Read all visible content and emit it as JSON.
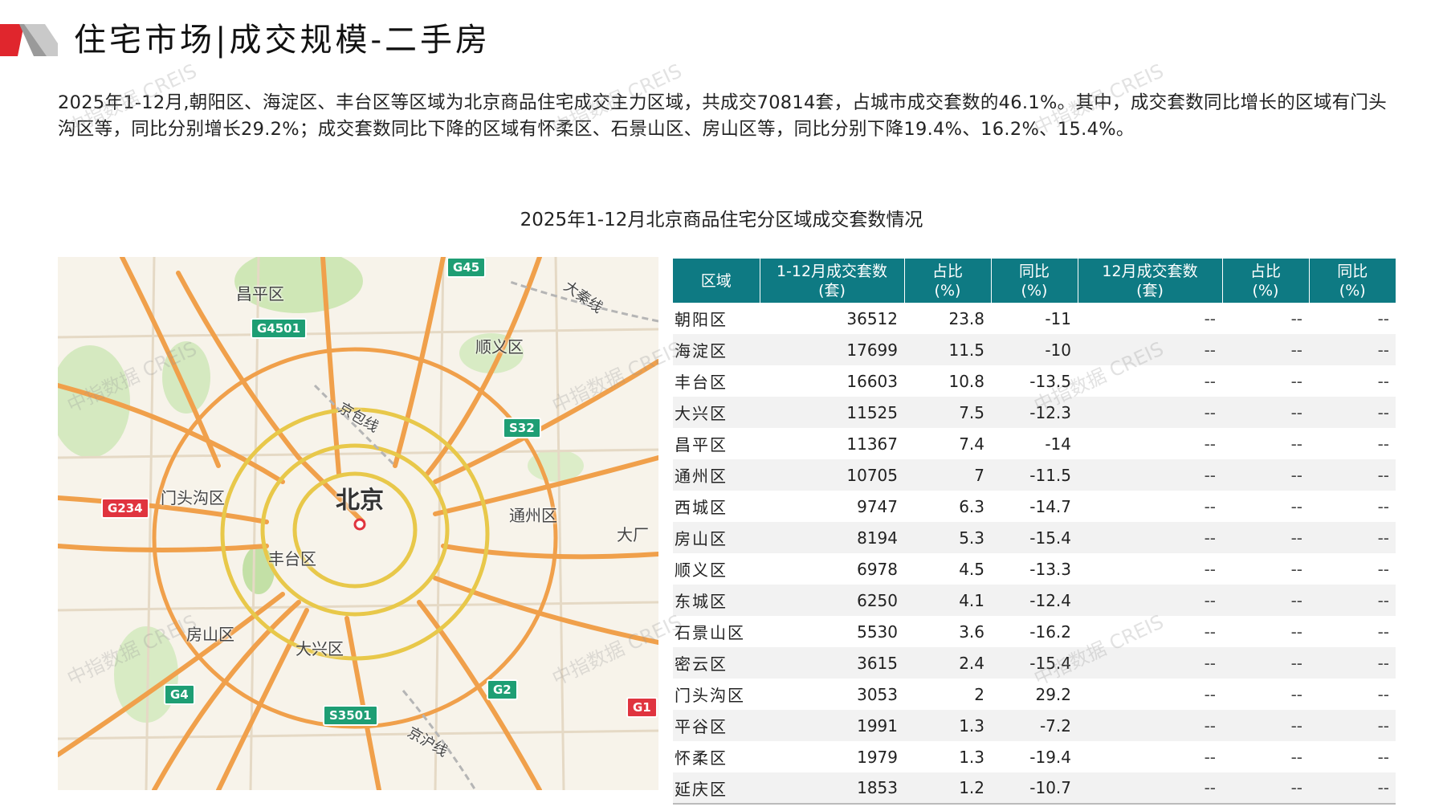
{
  "header": {
    "title": "住宅市场|成交规模-二手房"
  },
  "summary": "2025年1-12月,朝阳区、海淀区、丰台区等区域为北京商品住宅成交主力区域，共成交70814套，占城市成交套数的46.1%。其中，成交套数同比增长的区域有门头沟区等，同比分别增长29.2%；成交套数同比下降的区域有怀柔区、石景山区、房山区等，同比分别下降19.4%、16.2%、15.4%。",
  "chart_title": "2025年1-12月北京商品住宅分区域成交套数情况",
  "map": {
    "city_label": "北京",
    "district_labels": [
      "昌平区",
      "顺义区",
      "门头沟区",
      "通州区",
      "丰台区",
      "房山区",
      "大兴区",
      "大厂"
    ],
    "rail_labels": [
      "京包线",
      "大秦线",
      "京沪线"
    ],
    "highway_shields": [
      {
        "label": "G45",
        "color": "green"
      },
      {
        "label": "G4501",
        "color": "green"
      },
      {
        "label": "S32",
        "color": "green"
      },
      {
        "label": "G234",
        "color": "red"
      },
      {
        "label": "G4",
        "color": "green"
      },
      {
        "label": "G2",
        "color": "green"
      },
      {
        "label": "S3501",
        "color": "green"
      },
      {
        "label": "G1",
        "color": "red"
      }
    ],
    "colors": {
      "land": "#f7f3ea",
      "highway": "#f0a04b",
      "ring": "#e8c84a",
      "green": "#c8e3b0"
    }
  },
  "watermark": "中指数据 CREIS",
  "table": {
    "headers": [
      {
        "line1": "区域",
        "line2": ""
      },
      {
        "line1": "1-12月成交套数",
        "line2": "(套)"
      },
      {
        "line1": "占比",
        "line2": "(%)"
      },
      {
        "line1": "同比",
        "line2": "(%)"
      },
      {
        "line1": "12月成交套数",
        "line2": "(套)"
      },
      {
        "line1": "占比",
        "line2": "(%)"
      },
      {
        "line1": "同比",
        "line2": "(%)"
      }
    ],
    "header_color": "#0e7a83",
    "rows": [
      {
        "region": "朝阳区",
        "ytd": "36512",
        "share": "23.8",
        "yoy": "-11",
        "dec": "--",
        "dec_share": "--",
        "dec_yoy": "--"
      },
      {
        "region": "海淀区",
        "ytd": "17699",
        "share": "11.5",
        "yoy": "-10",
        "dec": "--",
        "dec_share": "--",
        "dec_yoy": "--"
      },
      {
        "region": "丰台区",
        "ytd": "16603",
        "share": "10.8",
        "yoy": "-13.5",
        "dec": "--",
        "dec_share": "--",
        "dec_yoy": "--"
      },
      {
        "region": "大兴区",
        "ytd": "11525",
        "share": "7.5",
        "yoy": "-12.3",
        "dec": "--",
        "dec_share": "--",
        "dec_yoy": "--"
      },
      {
        "region": "昌平区",
        "ytd": "11367",
        "share": "7.4",
        "yoy": "-14",
        "dec": "--",
        "dec_share": "--",
        "dec_yoy": "--"
      },
      {
        "region": "通州区",
        "ytd": "10705",
        "share": "7",
        "yoy": "-11.5",
        "dec": "--",
        "dec_share": "--",
        "dec_yoy": "--"
      },
      {
        "region": "西城区",
        "ytd": "9747",
        "share": "6.3",
        "yoy": "-14.7",
        "dec": "--",
        "dec_share": "--",
        "dec_yoy": "--"
      },
      {
        "region": "房山区",
        "ytd": "8194",
        "share": "5.3",
        "yoy": "-15.4",
        "dec": "--",
        "dec_share": "--",
        "dec_yoy": "--"
      },
      {
        "region": "顺义区",
        "ytd": "6978",
        "share": "4.5",
        "yoy": "-13.3",
        "dec": "--",
        "dec_share": "--",
        "dec_yoy": "--"
      },
      {
        "region": "东城区",
        "ytd": "6250",
        "share": "4.1",
        "yoy": "-12.4",
        "dec": "--",
        "dec_share": "--",
        "dec_yoy": "--"
      },
      {
        "region": "石景山区",
        "ytd": "5530",
        "share": "3.6",
        "yoy": "-16.2",
        "dec": "--",
        "dec_share": "--",
        "dec_yoy": "--"
      },
      {
        "region": "密云区",
        "ytd": "3615",
        "share": "2.4",
        "yoy": "-15.4",
        "dec": "--",
        "dec_share": "--",
        "dec_yoy": "--"
      },
      {
        "region": "门头沟区",
        "ytd": "3053",
        "share": "2",
        "yoy": "29.2",
        "dec": "--",
        "dec_share": "--",
        "dec_yoy": "--"
      },
      {
        "region": "平谷区",
        "ytd": "1991",
        "share": "1.3",
        "yoy": "-7.2",
        "dec": "--",
        "dec_share": "--",
        "dec_yoy": "--"
      },
      {
        "region": "怀柔区",
        "ytd": "1979",
        "share": "1.3",
        "yoy": "-19.4",
        "dec": "--",
        "dec_share": "--",
        "dec_yoy": "--"
      },
      {
        "region": "延庆区",
        "ytd": "1853",
        "share": "1.2",
        "yoy": "-10.7",
        "dec": "--",
        "dec_share": "--",
        "dec_yoy": "--"
      }
    ]
  }
}
